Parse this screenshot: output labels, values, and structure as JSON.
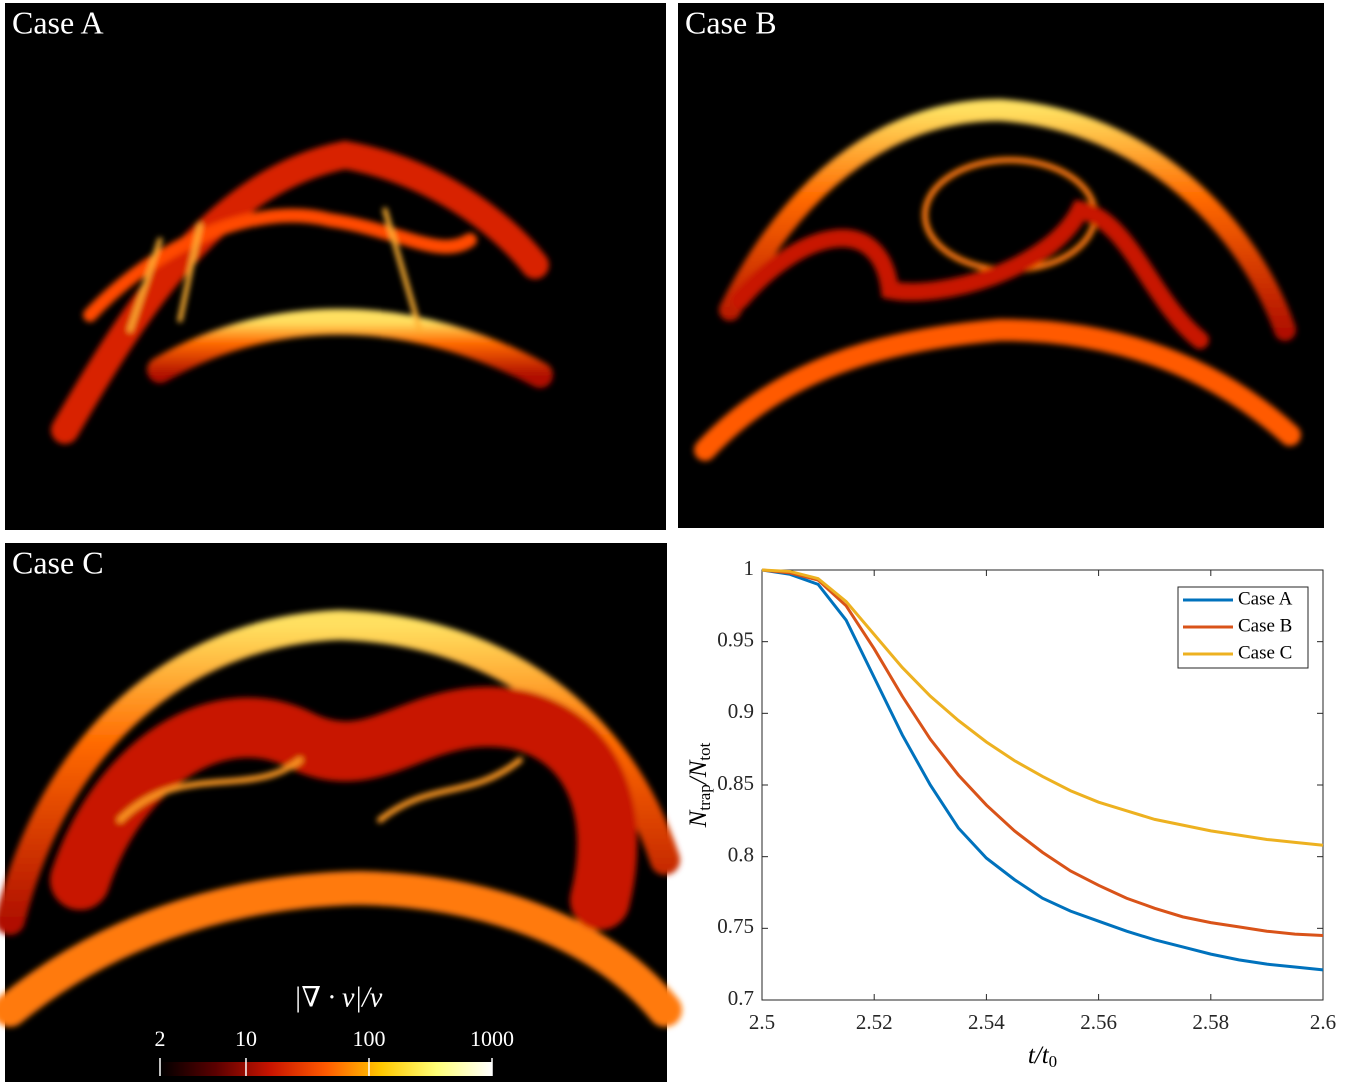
{
  "panels": [
    "Case A",
    "Case B",
    "Case C"
  ],
  "chart_data": [
    {
      "type": "colorbar",
      "title": "|∇ · v|/v",
      "log_scale": true,
      "xlim": [
        2,
        1000
      ],
      "xticks": [
        2,
        10,
        100,
        1000
      ],
      "colors": [
        "#000000",
        "#5a0000",
        "#c81400",
        "#ff5a00",
        "#ffc800",
        "#ffff78",
        "#ffffff"
      ]
    },
    {
      "type": "line",
      "xlabel": [
        "t/t",
        "0"
      ],
      "ylabel": [
        "N",
        "trap",
        "/N",
        "tot"
      ],
      "x": [
        2.5,
        2.505,
        2.51,
        2.515,
        2.52,
        2.525,
        2.53,
        2.535,
        2.54,
        2.545,
        2.55,
        2.555,
        2.56,
        2.565,
        2.57,
        2.575,
        2.58,
        2.585,
        2.59,
        2.595,
        2.6
      ],
      "series": [
        {
          "name": "Case A",
          "color": "#0072BD",
          "values": [
            1,
            0.997,
            0.99,
            0.965,
            0.925,
            0.885,
            0.85,
            0.82,
            0.799,
            0.784,
            0.771,
            0.762,
            0.755,
            0.748,
            0.742,
            0.737,
            0.732,
            0.728,
            0.725,
            0.723,
            0.721
          ]
        },
        {
          "name": "Case B",
          "color": "#D95319",
          "values": [
            1,
            0.998,
            0.993,
            0.975,
            0.945,
            0.912,
            0.882,
            0.857,
            0.836,
            0.818,
            0.803,
            0.79,
            0.78,
            0.771,
            0.764,
            0.758,
            0.754,
            0.751,
            0.748,
            0.746,
            0.745
          ]
        },
        {
          "name": "Case C",
          "color": "#EDB120",
          "values": [
            1,
            0.999,
            0.994,
            0.978,
            0.955,
            0.932,
            0.912,
            0.895,
            0.88,
            0.867,
            0.856,
            0.846,
            0.838,
            0.832,
            0.826,
            0.822,
            0.818,
            0.815,
            0.812,
            0.81,
            0.808
          ]
        }
      ],
      "xlim": [
        2.5,
        2.6
      ],
      "xticks": [
        2.5,
        2.52,
        2.54,
        2.56,
        2.58,
        2.6
      ],
      "ylim": [
        0.7,
        1
      ],
      "yticks": [
        0.7,
        0.75,
        0.8,
        0.85,
        0.9,
        0.95,
        1
      ],
      "legend": "upper right",
      "grid": false
    }
  ]
}
